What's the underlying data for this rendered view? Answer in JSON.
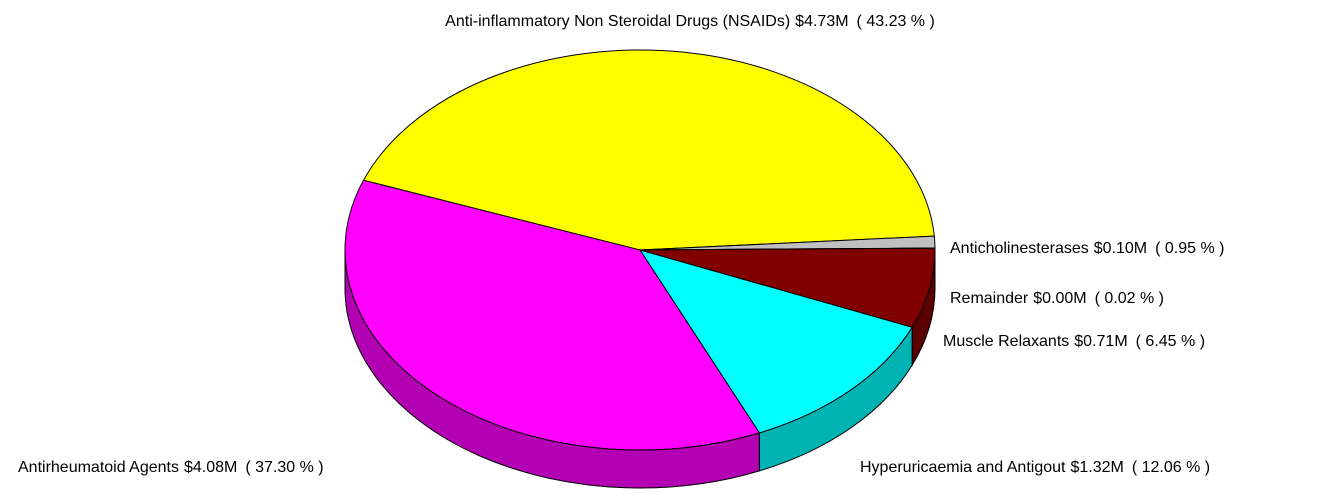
{
  "chart_data": {
    "type": "pie",
    "categories": [
      "Anti-inflammatory Non Steroidal Drugs (NSAIDs)",
      "Anticholinesterases",
      "Remainder",
      "Muscle Relaxants",
      "Hyperuricaemia and Antigout",
      "Antirheumatoid Agents"
    ],
    "amount_labels": [
      "$4.73M",
      "$0.10M",
      "$0.00M",
      "$0.71M",
      "$1.32M",
      "$4.08M"
    ],
    "values": [
      43.23,
      0.95,
      0.02,
      6.45,
      12.06,
      37.3
    ],
    "value_labels": [
      "( 43.23 % )",
      "( 0.95 % )",
      "( 0.02 % )",
      "( 6.45 % )",
      "( 12.06 % )",
      "( 37.30 % )"
    ],
    "colors": [
      "#ffff00",
      "#c0c0c0",
      "#00ff00",
      "#800000",
      "#00ffff",
      "#ff00ff"
    ],
    "three_d": true
  }
}
